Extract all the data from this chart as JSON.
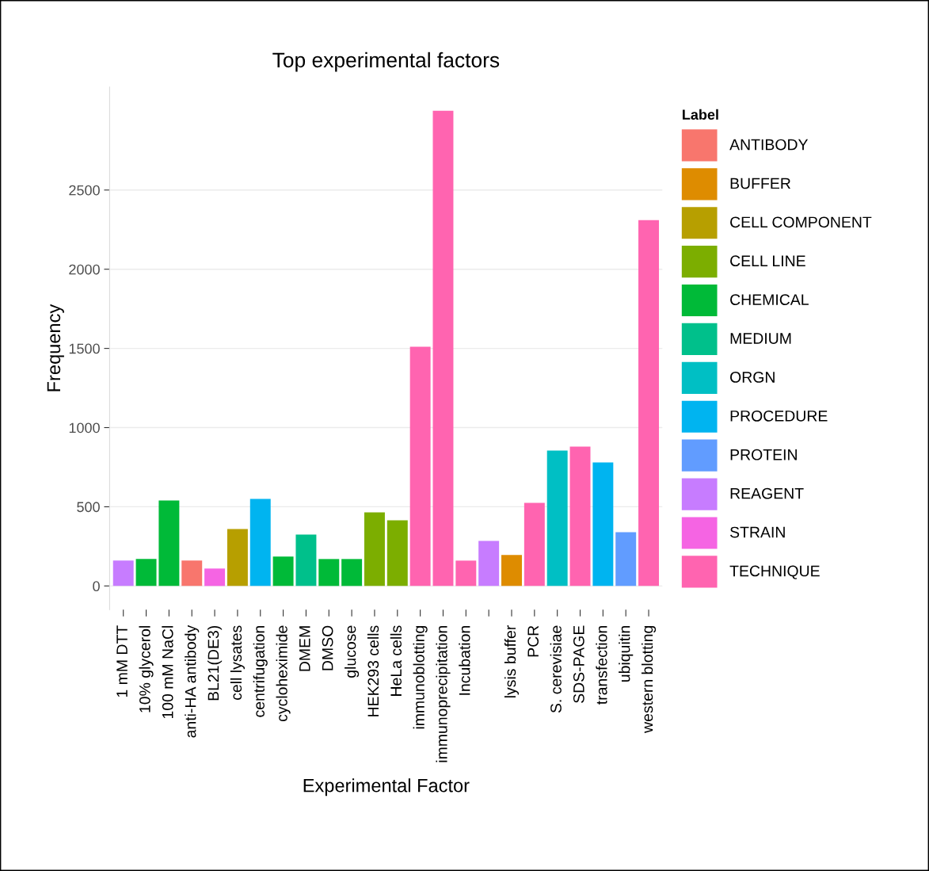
{
  "chart_data": {
    "type": "bar",
    "title": "Top experimental factors",
    "xlabel": "Experimental Factor",
    "ylabel": "Frequency",
    "legend_title": "Label",
    "categories": [
      "1 mM DTT",
      "10% glycerol",
      "100 mM NaCl",
      "anti-HA antibody",
      "BL21(DE3)",
      "cell lysates",
      "centrifugation",
      "cycloheximide",
      "DMEM",
      "DMSO",
      "glucose",
      "HEK293 cells",
      "HeLa cells",
      "immunoblotting",
      "immunoprecipitation",
      "Incubation",
      null,
      "lysis buffer",
      "PCR",
      "S. cerevisiae",
      "SDS-PAGE",
      "transfection",
      "ubiquitin",
      "western blotting"
    ],
    "series": [
      {
        "name": "ANTIBODY",
        "color": "#f8766d",
        "values": [
          null,
          null,
          null,
          160,
          null,
          null,
          null,
          null,
          null,
          null,
          null,
          null,
          null,
          null,
          null,
          null,
          null,
          null,
          null,
          null,
          null,
          null,
          null,
          null
        ]
      },
      {
        "name": "BUFFER",
        "color": "#de8c00",
        "values": [
          null,
          null,
          null,
          null,
          null,
          null,
          null,
          null,
          null,
          null,
          null,
          null,
          null,
          null,
          null,
          null,
          null,
          195,
          null,
          null,
          null,
          null,
          null,
          null
        ]
      },
      {
        "name": "CELL COMPONENT",
        "color": "#b79f00",
        "values": [
          null,
          null,
          null,
          null,
          null,
          360,
          null,
          null,
          null,
          null,
          null,
          null,
          null,
          null,
          null,
          null,
          null,
          null,
          null,
          null,
          null,
          null,
          null,
          null
        ]
      },
      {
        "name": "CELL LINE",
        "color": "#7cae00",
        "values": [
          null,
          null,
          null,
          null,
          null,
          null,
          null,
          null,
          null,
          null,
          null,
          465,
          415,
          null,
          null,
          null,
          null,
          null,
          null,
          null,
          null,
          null,
          null,
          null
        ]
      },
      {
        "name": "CHEMICAL",
        "color": "#00ba38",
        "values": [
          null,
          170,
          540,
          null,
          null,
          null,
          null,
          185,
          null,
          170,
          170,
          null,
          null,
          null,
          null,
          null,
          null,
          null,
          null,
          null,
          null,
          null,
          null,
          null
        ]
      },
      {
        "name": "MEDIUM",
        "color": "#00c08b",
        "values": [
          null,
          null,
          null,
          null,
          null,
          null,
          null,
          null,
          325,
          null,
          null,
          null,
          null,
          null,
          null,
          null,
          null,
          null,
          null,
          null,
          null,
          null,
          null,
          null
        ]
      },
      {
        "name": "ORGN",
        "color": "#00bfc4",
        "values": [
          null,
          null,
          null,
          null,
          null,
          null,
          null,
          null,
          null,
          null,
          null,
          null,
          null,
          null,
          null,
          null,
          null,
          null,
          null,
          855,
          null,
          null,
          null,
          null
        ]
      },
      {
        "name": "PROCEDURE",
        "color": "#00b4f0",
        "values": [
          null,
          null,
          null,
          null,
          null,
          null,
          550,
          null,
          null,
          null,
          null,
          null,
          null,
          null,
          null,
          null,
          null,
          null,
          null,
          null,
          null,
          780,
          null,
          null
        ]
      },
      {
        "name": "PROTEIN",
        "color": "#619cff",
        "values": [
          null,
          null,
          null,
          null,
          null,
          null,
          null,
          null,
          null,
          null,
          null,
          null,
          null,
          null,
          null,
          null,
          null,
          null,
          null,
          null,
          null,
          null,
          340,
          null
        ]
      },
      {
        "name": "REAGENT",
        "color": "#c77cff",
        "values": [
          160,
          null,
          null,
          null,
          null,
          null,
          null,
          null,
          null,
          null,
          null,
          null,
          null,
          null,
          null,
          null,
          285,
          null,
          null,
          null,
          null,
          null,
          null,
          null
        ]
      },
      {
        "name": "STRAIN",
        "color": "#f564e3",
        "values": [
          null,
          null,
          null,
          null,
          110,
          null,
          null,
          null,
          null,
          null,
          null,
          null,
          null,
          null,
          null,
          null,
          null,
          null,
          null,
          null,
          null,
          null,
          null,
          null
        ]
      },
      {
        "name": "TECHNIQUE",
        "color": "#ff64b0",
        "values": [
          null,
          null,
          null,
          null,
          null,
          null,
          null,
          null,
          null,
          null,
          null,
          null,
          null,
          1510,
          3000,
          160,
          null,
          null,
          525,
          null,
          880,
          null,
          null,
          2310
        ]
      }
    ],
    "ylim": [
      -150,
      3150
    ],
    "yticks": [
      0,
      500,
      1000,
      1500,
      2000,
      2500
    ],
    "grid": "y",
    "legend": "right"
  }
}
